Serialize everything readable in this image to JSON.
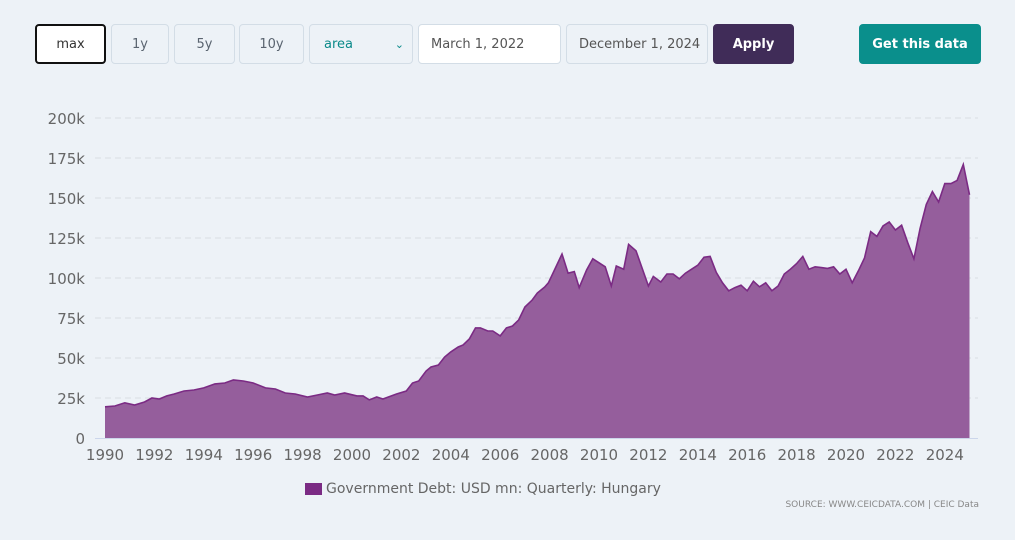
{
  "toolbar": {
    "ranges": [
      "max",
      "1y",
      "5y",
      "10y"
    ],
    "chart_type": "area",
    "start_date": "March 1, 2022",
    "end_date": "December 1, 2024",
    "apply_label": "Apply",
    "get_data_label": "Get this data"
  },
  "chart_data": {
    "type": "area",
    "title": "",
    "xlabel": "",
    "ylabel": "",
    "series_name": "Government Debt: USD mn: Quarterly: Hungary",
    "color": "#7b2b84",
    "fill": "#955e9c",
    "ylim": [
      0,
      200000
    ],
    "xlim": [
      1990,
      2025
    ],
    "y_ticks": [
      0,
      25000,
      50000,
      75000,
      100000,
      125000,
      150000,
      175000,
      200000
    ],
    "y_tick_labels": [
      "0",
      "25k",
      "50k",
      "75k",
      "100k",
      "125k",
      "150k",
      "175k",
      "200k"
    ],
    "x_ticks": [
      1990,
      1992,
      1994,
      1996,
      1998,
      2000,
      2002,
      2004,
      2006,
      2008,
      2010,
      2012,
      2014,
      2016,
      2018,
      2020,
      2022,
      2024
    ],
    "x_tick_labels": [
      "1990",
      "1992",
      "1994",
      "1996",
      "1998",
      "2000",
      "2002",
      "2004",
      "2006",
      "2008",
      "2010",
      "2012",
      "2014",
      "2016",
      "2018",
      "2020",
      "2022",
      "2024"
    ],
    "grid": true,
    "legend_position": "bottom-center",
    "points": [
      [
        1990.0,
        19.5
      ],
      [
        1990.4,
        20
      ],
      [
        1990.8,
        22
      ],
      [
        1991.2,
        20.6
      ],
      [
        1991.6,
        22.5
      ],
      [
        1991.9,
        25
      ],
      [
        1992.2,
        24.4
      ],
      [
        1992.5,
        26.3
      ],
      [
        1992.8,
        27.5
      ],
      [
        1993.2,
        29.4
      ],
      [
        1993.6,
        30
      ],
      [
        1994.0,
        31.3
      ],
      [
        1994.45,
        33.8
      ],
      [
        1994.85,
        34.4
      ],
      [
        1995.2,
        36.3
      ],
      [
        1995.6,
        35.6
      ],
      [
        1996.0,
        34.4
      ],
      [
        1996.5,
        31.3
      ],
      [
        1996.9,
        30.6
      ],
      [
        1997.3,
        28.1
      ],
      [
        1997.7,
        27.5
      ],
      [
        1998.2,
        25.6
      ],
      [
        1998.6,
        26.9
      ],
      [
        1999.0,
        28.1
      ],
      [
        1999.3,
        26.9
      ],
      [
        1999.7,
        28.1
      ],
      [
        2000.2,
        26.3
      ],
      [
        2000.45,
        26.3
      ],
      [
        2000.7,
        23.8
      ],
      [
        2001.0,
        25.6
      ],
      [
        2001.25,
        24.4
      ],
      [
        2001.8,
        27.5
      ],
      [
        2002.2,
        29.4
      ],
      [
        2002.45,
        34.4
      ],
      [
        2002.7,
        35.6
      ],
      [
        2003.0,
        41.9
      ],
      [
        2003.2,
        44.4
      ],
      [
        2003.5,
        45.6
      ],
      [
        2003.75,
        50.6
      ],
      [
        2004.0,
        53.8
      ],
      [
        2004.3,
        56.9
      ],
      [
        2004.5,
        58.1
      ],
      [
        2004.75,
        61.9
      ],
      [
        2005.0,
        68.8
      ],
      [
        2005.2,
        68.8
      ],
      [
        2005.5,
        66.9
      ],
      [
        2005.7,
        66.9
      ],
      [
        2006.0,
        63.8
      ],
      [
        2006.25,
        68.8
      ],
      [
        2006.5,
        70
      ],
      [
        2006.75,
        73.8
      ],
      [
        2007.0,
        81.9
      ],
      [
        2007.3,
        86.3
      ],
      [
        2007.5,
        90.6
      ],
      [
        2007.8,
        94.4
      ],
      [
        2007.95,
        97
      ],
      [
        2008.5,
        115
      ],
      [
        2008.75,
        103
      ],
      [
        2009.0,
        104
      ],
      [
        2009.2,
        94
      ],
      [
        2009.5,
        105
      ],
      [
        2009.75,
        112
      ],
      [
        2010.25,
        107
      ],
      [
        2010.5,
        95
      ],
      [
        2010.7,
        107.5
      ],
      [
        2011.0,
        105.5
      ],
      [
        2011.2,
        121
      ],
      [
        2011.5,
        117
      ],
      [
        2012.0,
        95
      ],
      [
        2012.2,
        101
      ],
      [
        2012.5,
        97.5
      ],
      [
        2012.75,
        102.5
      ],
      [
        2013.0,
        102.5
      ],
      [
        2013.25,
        99.5
      ],
      [
        2013.5,
        103
      ],
      [
        2013.75,
        105.5
      ],
      [
        2014.0,
        108
      ],
      [
        2014.25,
        113
      ],
      [
        2014.5,
        113.5
      ],
      [
        2014.75,
        103.5
      ],
      [
        2015.0,
        97
      ],
      [
        2015.25,
        92
      ],
      [
        2015.5,
        94
      ],
      [
        2015.75,
        95.5
      ],
      [
        2016.0,
        92
      ],
      [
        2016.25,
        98
      ],
      [
        2016.5,
        94.5
      ],
      [
        2016.75,
        97
      ],
      [
        2017.0,
        92
      ],
      [
        2017.25,
        95
      ],
      [
        2017.5,
        102.5
      ],
      [
        2017.75,
        105.5
      ],
      [
        2018.0,
        109
      ],
      [
        2018.25,
        113.5
      ],
      [
        2018.5,
        105.5
      ],
      [
        2018.75,
        107
      ],
      [
        2019.0,
        106.5
      ],
      [
        2019.25,
        106
      ],
      [
        2019.5,
        107
      ],
      [
        2019.75,
        102.5
      ],
      [
        2020.0,
        105.5
      ],
      [
        2020.25,
        97
      ],
      [
        2020.5,
        104.5
      ],
      [
        2020.75,
        112.5
      ],
      [
        2021.0,
        129
      ],
      [
        2021.25,
        126
      ],
      [
        2021.5,
        132.5
      ],
      [
        2021.75,
        135
      ],
      [
        2022.0,
        130
      ],
      [
        2022.25,
        133
      ],
      [
        2022.5,
        122
      ],
      [
        2022.75,
        112
      ],
      [
        2023.0,
        131
      ],
      [
        2023.25,
        146
      ],
      [
        2023.5,
        154
      ],
      [
        2023.75,
        147.5
      ],
      [
        2024.0,
        159
      ],
      [
        2024.25,
        159
      ],
      [
        2024.5,
        161
      ],
      [
        2024.75,
        171
      ],
      [
        2025.0,
        152
      ]
    ],
    "points_unit": "thousand USD mn"
  },
  "footer": {
    "source": "SOURCE: WWW.CEICDATA.COM | CEIC Data"
  }
}
